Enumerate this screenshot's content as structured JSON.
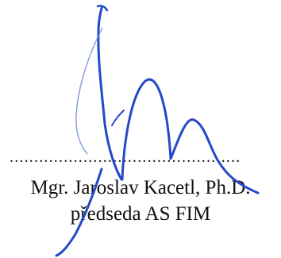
{
  "signature_block": {
    "dotted_line": "...............................................",
    "name": "Mgr. Jaroslav Kacetl, Ph.D.",
    "role": "předseda AS FIM"
  },
  "colors": {
    "text": "#111111",
    "ink": "#1f3fb8",
    "background": "#ffffff"
  }
}
